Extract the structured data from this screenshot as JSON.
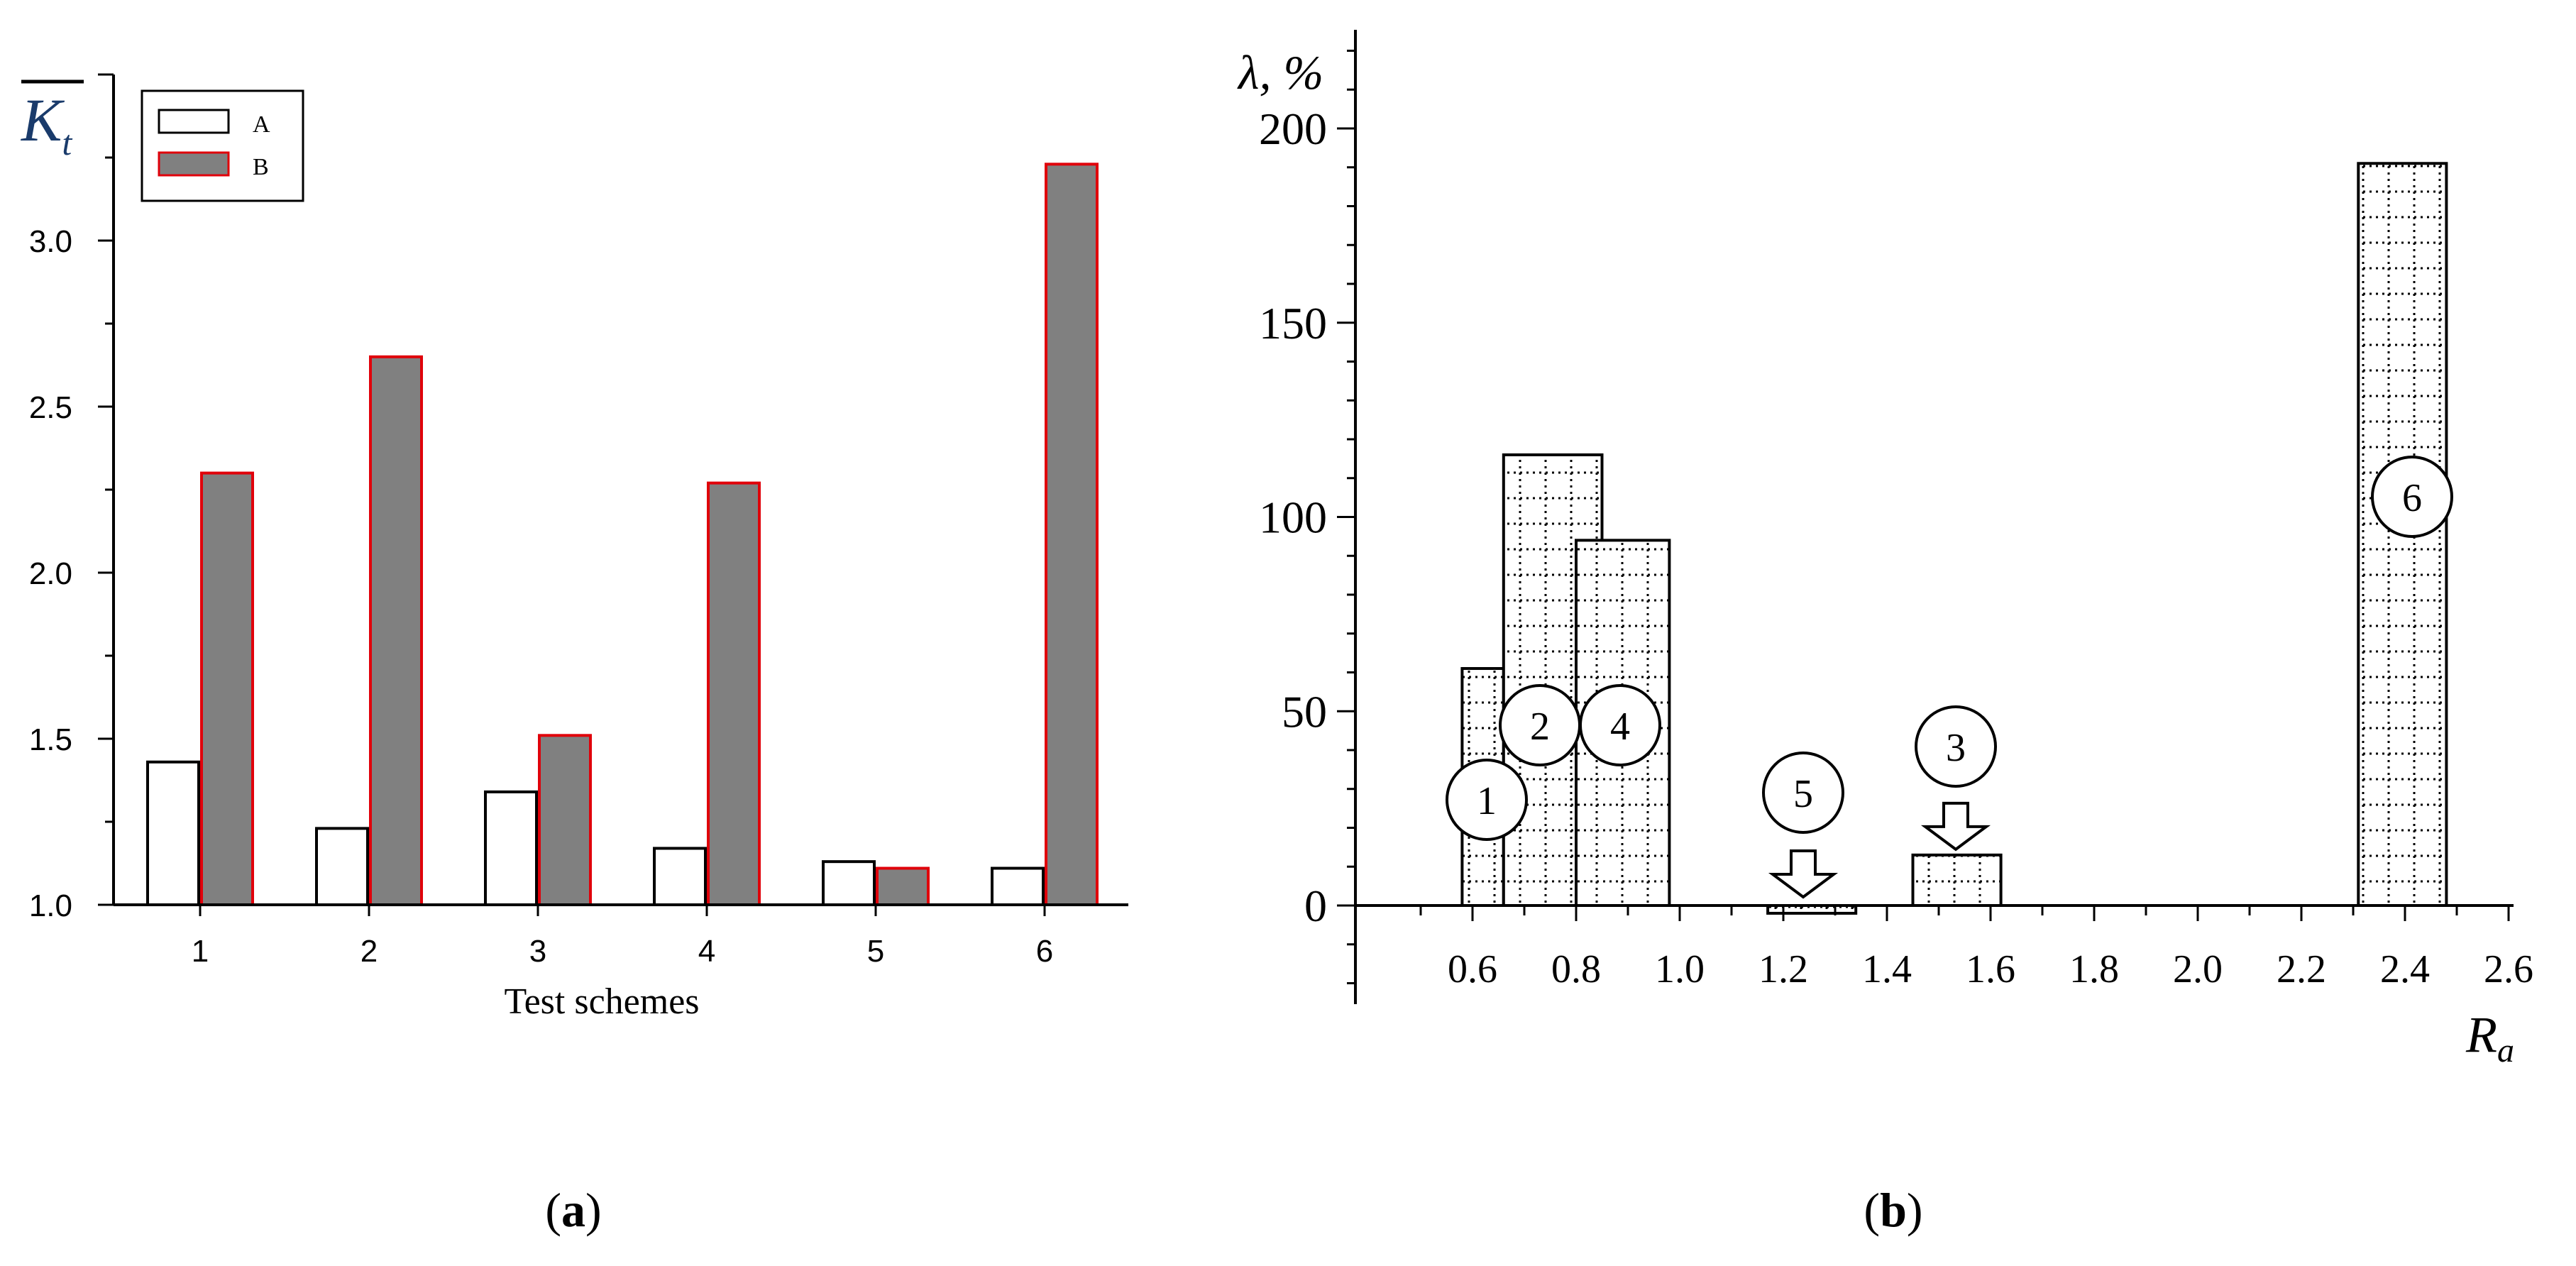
{
  "chart_data": [
    {
      "type": "bar",
      "panel_label": "a",
      "ylabel": "K_t",
      "xlabel": "Test schemes",
      "categories": [
        "1",
        "2",
        "3",
        "4",
        "5",
        "6"
      ],
      "ylim": [
        1.0,
        3.5
      ],
      "yticks": [
        1.0,
        1.5,
        2.0,
        2.5,
        3.0
      ],
      "ytick_labels": [
        "1.0",
        "1.5",
        "2.0",
        "2.5",
        "3.0"
      ],
      "legend_position": "top-left",
      "series": [
        {
          "name": "A",
          "values": [
            1.43,
            1.23,
            1.34,
            1.17,
            1.13,
            1.11
          ],
          "fill": "#ffffff",
          "stroke": "#000000"
        },
        {
          "name": "B",
          "values": [
            2.3,
            2.65,
            1.51,
            2.27,
            1.11,
            3.23
          ],
          "fill": "#808080",
          "stroke": "#e0000a"
        }
      ]
    },
    {
      "type": "bar",
      "panel_label": "b",
      "ylabel": "λ, %",
      "xlabel": "Ra",
      "ylim": [
        -25,
        225
      ],
      "xlim": [
        0.3,
        2.6
      ],
      "yticks": [
        0,
        50,
        100,
        150,
        200
      ],
      "ytick_labels": [
        "0",
        "50",
        "100",
        "150",
        "200"
      ],
      "xticks": [
        0.6,
        0.8,
        1.0,
        1.2,
        1.4,
        1.6,
        1.8,
        2.0,
        2.2,
        2.4,
        2.6
      ],
      "xtick_labels": [
        "0.6",
        "0.8",
        "1.0",
        "1.2",
        "1.4",
        "1.6",
        "1.8",
        "2.0",
        "2.2",
        "2.4",
        "2.6"
      ],
      "bars": [
        {
          "label": "1",
          "x0": 0.58,
          "x1": 0.66,
          "value": 61
        },
        {
          "label": "2",
          "x0": 0.66,
          "x1": 0.85,
          "value": 116
        },
        {
          "label": "4",
          "x0": 0.8,
          "x1": 0.98,
          "value": 94
        },
        {
          "label": "5",
          "x0": 1.17,
          "x1": 1.34,
          "value": -2
        },
        {
          "label": "3",
          "x0": 1.45,
          "x1": 1.62,
          "value": 13
        },
        {
          "label": "6",
          "x0": 2.31,
          "x1": 2.48,
          "value": 191
        }
      ]
    }
  ]
}
